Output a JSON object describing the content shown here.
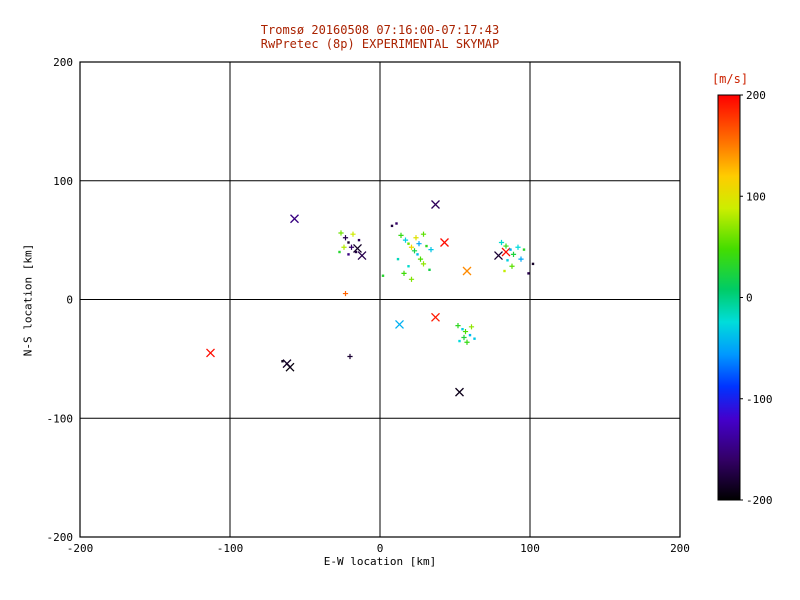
{
  "titles": {
    "line1": "Tromsø 20160508 07:16:00-07:17:43",
    "line2": "RwPretec (8p) EXPERIMENTAL SKYMAP"
  },
  "colors": {
    "title": "#aa2200",
    "cbar_label": "#cc2200",
    "axis": "#000000",
    "background": "#ffffff"
  },
  "chart_data": {
    "type": "scatter",
    "title": "Tromsø 20160508 07:16:00-07:17:43",
    "subtitle": "RwPretec (8p) EXPERIMENTAL SKYMAP",
    "xlabel": "E-W location [km]",
    "ylabel": "N-S location [km]",
    "xlim": [
      -200,
      200
    ],
    "ylim": [
      -200,
      200
    ],
    "x_ticks": [
      -200,
      -100,
      0,
      100,
      200
    ],
    "y_ticks": [
      -200,
      -100,
      0,
      100,
      200
    ],
    "grid": true,
    "legend_position": "none",
    "colorbar": {
      "label": "[m/s]",
      "min": -200,
      "max": 200,
      "ticks": [
        200,
        100,
        0,
        -100,
        -200
      ],
      "stops": [
        {
          "t": 0.0,
          "color": "#000000"
        },
        {
          "t": 0.1,
          "color": "#330066"
        },
        {
          "t": 0.2,
          "color": "#4400cc"
        },
        {
          "t": 0.28,
          "color": "#0033ff"
        },
        {
          "t": 0.36,
          "color": "#0099ff"
        },
        {
          "t": 0.44,
          "color": "#00ddda"
        },
        {
          "t": 0.52,
          "color": "#00cc66"
        },
        {
          "t": 0.62,
          "color": "#44dd00"
        },
        {
          "t": 0.72,
          "color": "#ccee00"
        },
        {
          "t": 0.8,
          "color": "#ffcc00"
        },
        {
          "t": 0.88,
          "color": "#ff7700"
        },
        {
          "t": 1.0,
          "color": "#ff0000"
        }
      ]
    },
    "points": [
      {
        "x": -57,
        "y": 68,
        "v": -150,
        "m": "x"
      },
      {
        "x": 37,
        "y": 80,
        "v": -165,
        "m": "x"
      },
      {
        "x": -15,
        "y": 43,
        "v": -185,
        "m": "x"
      },
      {
        "x": -12,
        "y": 37,
        "v": -170,
        "m": "x"
      },
      {
        "x": 43,
        "y": 48,
        "v": 195,
        "m": "x"
      },
      {
        "x": 58,
        "y": 24,
        "v": 145,
        "m": "x"
      },
      {
        "x": 79,
        "y": 37,
        "v": -180,
        "m": "x"
      },
      {
        "x": 84,
        "y": 40,
        "v": 195,
        "m": "x"
      },
      {
        "x": 37,
        "y": -15,
        "v": 190,
        "m": "x"
      },
      {
        "x": 13,
        "y": -21,
        "v": -45,
        "m": "x"
      },
      {
        "x": 53,
        "y": -78,
        "v": -190,
        "m": "x"
      },
      {
        "x": -113,
        "y": -45,
        "v": 195,
        "m": "x"
      },
      {
        "x": -60,
        "y": -57,
        "v": -195,
        "m": "x"
      },
      {
        "x": -62,
        "y": -54,
        "v": -185,
        "m": "x"
      },
      {
        "x": -23,
        "y": 5,
        "v": 160,
        "m": "p"
      },
      {
        "x": -26,
        "y": 56,
        "v": 60,
        "m": "p"
      },
      {
        "x": -23,
        "y": 52,
        "v": -170,
        "m": "p"
      },
      {
        "x": -21,
        "y": 48,
        "v": -180,
        "m": "d"
      },
      {
        "x": -19,
        "y": 44,
        "v": -160,
        "m": "p"
      },
      {
        "x": -16,
        "y": 40,
        "v": -175,
        "m": "d"
      },
      {
        "x": -24,
        "y": 44,
        "v": 80,
        "m": "p"
      },
      {
        "x": -27,
        "y": 40,
        "v": 30,
        "m": "d"
      },
      {
        "x": -18,
        "y": 55,
        "v": 90,
        "m": "p"
      },
      {
        "x": -21,
        "y": 38,
        "v": -150,
        "m": "d"
      },
      {
        "x": -14,
        "y": 50,
        "v": -165,
        "m": "d"
      },
      {
        "x": 14,
        "y": 54,
        "v": 40,
        "m": "p"
      },
      {
        "x": 17,
        "y": 50,
        "v": -30,
        "m": "p"
      },
      {
        "x": 19,
        "y": 47,
        "v": 60,
        "m": "d"
      },
      {
        "x": 21,
        "y": 44,
        "v": 110,
        "m": "p"
      },
      {
        "x": 23,
        "y": 41,
        "v": 20,
        "m": "p"
      },
      {
        "x": 25,
        "y": 38,
        "v": -40,
        "m": "d"
      },
      {
        "x": 27,
        "y": 34,
        "v": 50,
        "m": "p"
      },
      {
        "x": 29,
        "y": 30,
        "v": 70,
        "m": "p"
      },
      {
        "x": 19,
        "y": 28,
        "v": -20,
        "m": "d"
      },
      {
        "x": 16,
        "y": 22,
        "v": 45,
        "m": "p"
      },
      {
        "x": 24,
        "y": 52,
        "v": 100,
        "m": "p"
      },
      {
        "x": 31,
        "y": 45,
        "v": 35,
        "m": "d"
      },
      {
        "x": 34,
        "y": 42,
        "v": -35,
        "m": "p"
      },
      {
        "x": 29,
        "y": 55,
        "v": 55,
        "m": "p"
      },
      {
        "x": 12,
        "y": 34,
        "v": -15,
        "m": "d"
      },
      {
        "x": 21,
        "y": 17,
        "v": 65,
        "m": "p"
      },
      {
        "x": 33,
        "y": 25,
        "v": 20,
        "m": "d"
      },
      {
        "x": 26,
        "y": 47,
        "v": -50,
        "m": "p"
      },
      {
        "x": 8,
        "y": 62,
        "v": -175,
        "m": "d"
      },
      {
        "x": 11,
        "y": 64,
        "v": -160,
        "m": "d"
      },
      {
        "x": 2,
        "y": 20,
        "v": 30,
        "m": "d"
      },
      {
        "x": 81,
        "y": 48,
        "v": -20,
        "m": "p"
      },
      {
        "x": 84,
        "y": 45,
        "v": 40,
        "m": "p"
      },
      {
        "x": 87,
        "y": 42,
        "v": -45,
        "m": "d"
      },
      {
        "x": 89,
        "y": 38,
        "v": 25,
        "m": "p"
      },
      {
        "x": 85,
        "y": 33,
        "v": -30,
        "m": "d"
      },
      {
        "x": 88,
        "y": 28,
        "v": 55,
        "m": "p"
      },
      {
        "x": 92,
        "y": 44,
        "v": -25,
        "m": "p"
      },
      {
        "x": 83,
        "y": 24,
        "v": 85,
        "m": "d"
      },
      {
        "x": 94,
        "y": 34,
        "v": -50,
        "m": "p"
      },
      {
        "x": 96,
        "y": 42,
        "v": 30,
        "m": "d"
      },
      {
        "x": 99,
        "y": 22,
        "v": -170,
        "m": "d"
      },
      {
        "x": 102,
        "y": 30,
        "v": -185,
        "m": "d"
      },
      {
        "x": 52,
        "y": -22,
        "v": 35,
        "m": "p"
      },
      {
        "x": 55,
        "y": -25,
        "v": -30,
        "m": "d"
      },
      {
        "x": 57,
        "y": -27,
        "v": 50,
        "m": "p"
      },
      {
        "x": 60,
        "y": -30,
        "v": -40,
        "m": "d"
      },
      {
        "x": 56,
        "y": -32,
        "v": 25,
        "m": "p"
      },
      {
        "x": 53,
        "y": -35,
        "v": -25,
        "m": "d"
      },
      {
        "x": 61,
        "y": -23,
        "v": 70,
        "m": "p"
      },
      {
        "x": 63,
        "y": -33,
        "v": -35,
        "m": "d"
      },
      {
        "x": 58,
        "y": -36,
        "v": 40,
        "m": "p"
      },
      {
        "x": -65,
        "y": -52,
        "v": -190,
        "m": "d"
      },
      {
        "x": -20,
        "y": -48,
        "v": -180,
        "m": "p"
      }
    ]
  }
}
